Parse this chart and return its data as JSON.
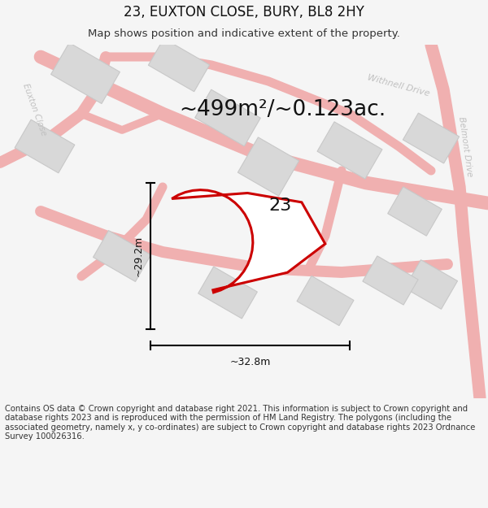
{
  "title": "23, EUXTON CLOSE, BURY, BL8 2HY",
  "subtitle": "Map shows position and indicative extent of the property.",
  "footer": "Contains OS data © Crown copyright and database right 2021. This information is subject to Crown copyright and database rights 2023 and is reproduced with the permission of HM Land Registry. The polygons (including the associated geometry, namely x, y co-ordinates) are subject to Crown copyright and database rights 2023 Ordnance Survey 100026316.",
  "area_label": "~499m²/~0.123ac.",
  "number_label": "23",
  "dim_width": "~32.8m",
  "dim_height": "~29.2m",
  "bg_color": "#f5f5f5",
  "map_bg": "#eeeeee",
  "plot_outline_color": "#cc0000",
  "road_color": "#f0b0b0",
  "building_color": "#d8d8d8",
  "building_outline": "#c8c8c8",
  "street_label_color": "#c0c0c0",
  "title_fontsize": 12,
  "subtitle_fontsize": 9.5,
  "footer_fontsize": 7.2,
  "area_label_fontsize": 19,
  "number_label_fontsize": 16,
  "dim_fontsize": 9
}
